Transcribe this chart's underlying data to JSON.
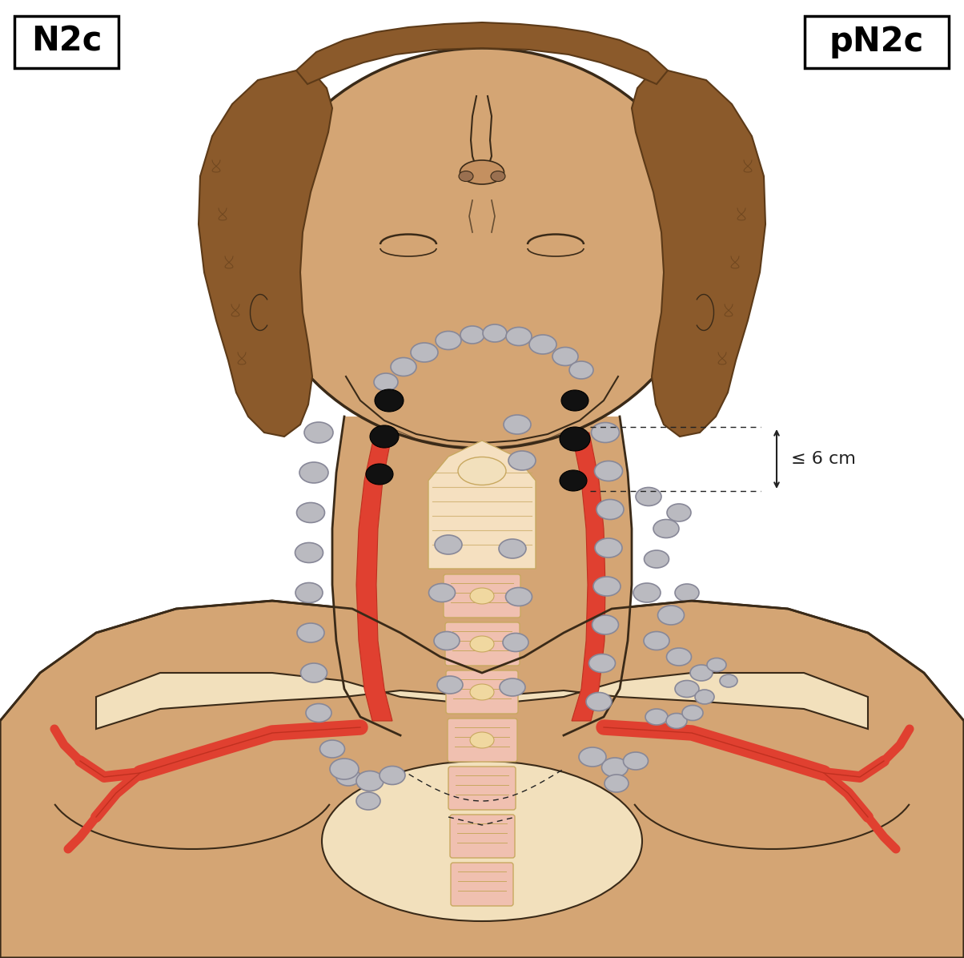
{
  "title_left": "N2c",
  "title_right": "pN2c",
  "annotation_text": "≤ 6 cm",
  "skin_color": "#D4A574",
  "skin_light": "#EDD5A8",
  "skin_lighter": "#F2E0BC",
  "skin_dark": "#C49060",
  "hair_color": "#8B5A2B",
  "hair_dark": "#5C3A18",
  "red_vessel": "#E04030",
  "red_vessel_dark": "#C03020",
  "lymph_gray": "#BABAC0",
  "lymph_edge": "#888898",
  "lymph_dark": "#111111",
  "spine_color": "#F0D8A0",
  "spine_dark": "#C8A860",
  "spine_pink": "#F0C0B0",
  "throat_peach": "#F5E0C0",
  "bg_color": "#FFFFFF",
  "outline_color": "#3A2A18",
  "dashed_color": "#222222"
}
